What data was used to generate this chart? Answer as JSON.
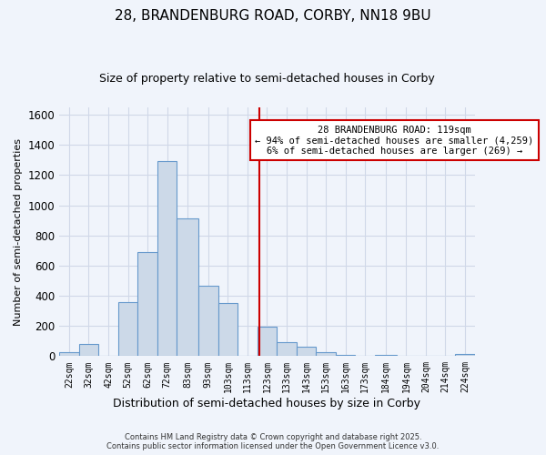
{
  "title": "28, BRANDENBURG ROAD, CORBY, NN18 9BU",
  "subtitle": "Size of property relative to semi-detached houses in Corby",
  "xlabel": "Distribution of semi-detached houses by size in Corby",
  "ylabel": "Number of semi-detached properties",
  "bar_labels": [
    "22sqm",
    "32sqm",
    "42sqm",
    "52sqm",
    "62sqm",
    "72sqm",
    "83sqm",
    "93sqm",
    "103sqm",
    "113sqm",
    "123sqm",
    "133sqm",
    "143sqm",
    "153sqm",
    "163sqm",
    "173sqm",
    "184sqm",
    "194sqm",
    "204sqm",
    "214sqm",
    "224sqm"
  ],
  "bar_values": [
    25,
    80,
    0,
    355,
    690,
    1290,
    910,
    465,
    350,
    0,
    195,
    95,
    60,
    25,
    10,
    0,
    10,
    0,
    0,
    0,
    15
  ],
  "bar_color": "#ccd9e8",
  "bar_edge_color": "#6699cc",
  "vline_x": 119,
  "vline_color": "#cc0000",
  "annotation_text": "28 BRANDENBURG ROAD: 119sqm\n← 94% of semi-detached houses are smaller (4,259)\n6% of semi-detached houses are larger (269) →",
  "annotation_box_color": "#ffffff",
  "annotation_box_edge": "#cc0000",
  "ylim": [
    0,
    1650
  ],
  "bin_edges": [
    17,
    27,
    37,
    47,
    57,
    67,
    77,
    88,
    98,
    108,
    118,
    128,
    138,
    148,
    158,
    168,
    178,
    189,
    199,
    209,
    219,
    229
  ],
  "footer_line1": "Contains HM Land Registry data © Crown copyright and database right 2025.",
  "footer_line2": "Contains public sector information licensed under the Open Government Licence v3.0.",
  "background_color": "#f0f4fb",
  "grid_color": "#d0d8e8",
  "title_fontsize": 11,
  "subtitle_fontsize": 9,
  "annot_fontsize": 7.5,
  "xlabel_fontsize": 9,
  "ylabel_fontsize": 8
}
